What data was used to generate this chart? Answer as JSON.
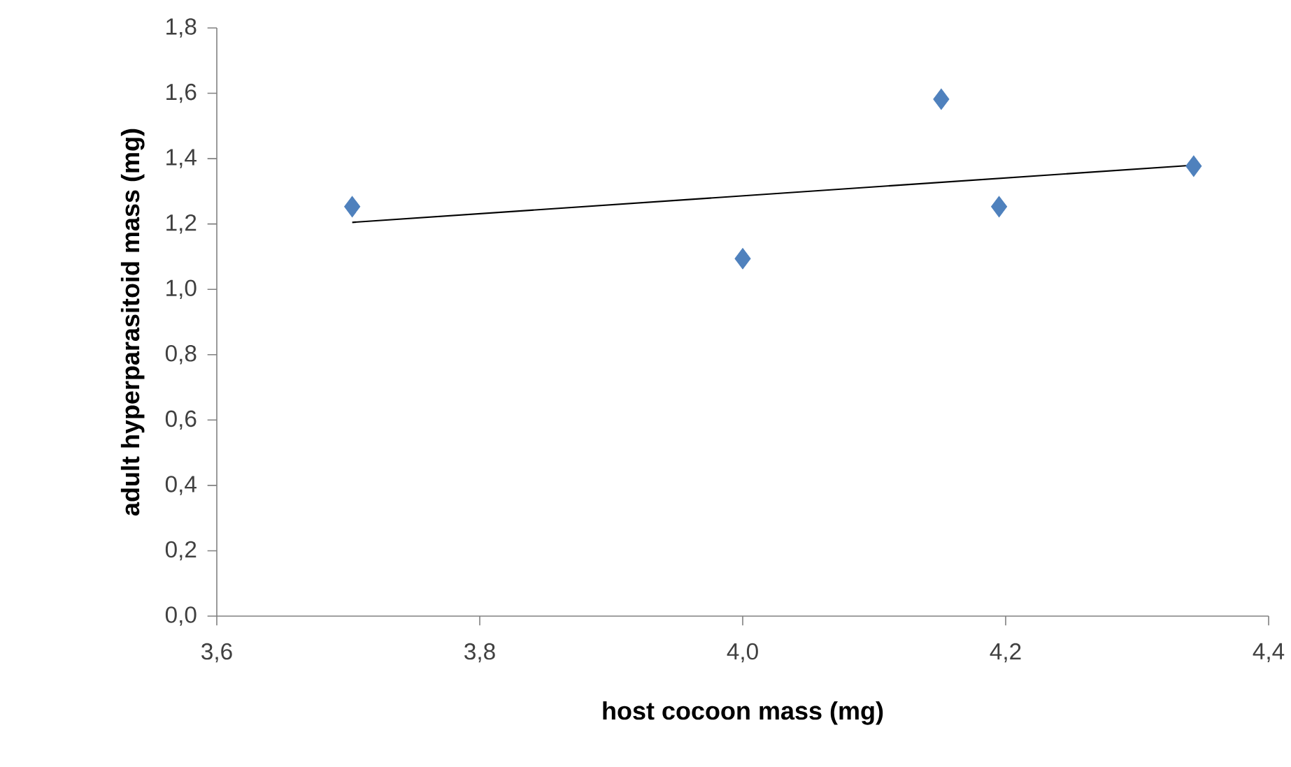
{
  "chart_data": {
    "type": "scatter",
    "xlabel": "host cocoon mass (mg)",
    "ylabel": "adult hyperparasitoid mass (mg)",
    "series": [
      {
        "color": "#4f81bd",
        "marker": "diamond",
        "x": [
          3.703,
          4.0,
          4.151,
          4.195,
          4.343
        ],
        "values": [
          1.253,
          1.094,
          1.582,
          1.253,
          1.377
        ]
      },
      {
        "type": "line",
        "color": "#000000",
        "marker": "none",
        "x": [
          3.703,
          4.343
        ],
        "values": [
          1.205,
          1.38
        ]
      }
    ],
    "xlim": [
      3.6,
      4.4
    ],
    "xticks": [
      {
        "value": 3.6,
        "label": "3,6"
      },
      {
        "value": 3.8,
        "label": "3,8"
      },
      {
        "value": 4.0,
        "label": "4,0"
      },
      {
        "value": 4.2,
        "label": "4,2"
      },
      {
        "value": 4.4,
        "label": "4,4"
      }
    ],
    "ylim": [
      0,
      1.8
    ],
    "yticks": [
      {
        "value": 0,
        "label": "0,0"
      },
      {
        "value": 0.2,
        "label": "0,2"
      },
      {
        "value": 0.4,
        "label": "0,4"
      },
      {
        "value": 0.6,
        "label": "0,6"
      },
      {
        "value": 0.8,
        "label": "0,8"
      },
      {
        "value": 1.0,
        "label": "1,0"
      },
      {
        "value": 1.2,
        "label": "1,2"
      },
      {
        "value": 1.4,
        "label": "1,4"
      },
      {
        "value": 1.6,
        "label": "1,6"
      },
      {
        "value": 1.8,
        "label": "1,8"
      }
    ],
    "grid": false,
    "legend": false
  }
}
